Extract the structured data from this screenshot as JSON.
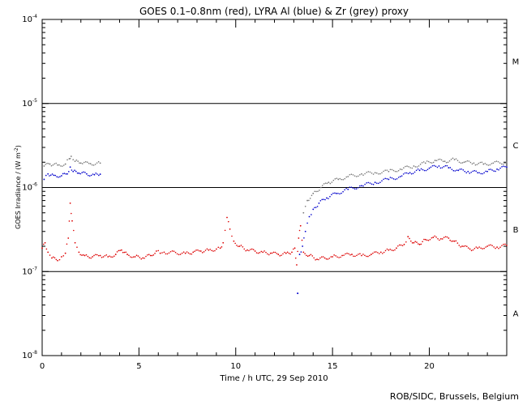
{
  "chart_data": {
    "type": "scatter",
    "title": "GOES 0.1–0.8nm (red), LYRA Al (blue) & Zr (grey) proxy",
    "xlabel": "Time / h UTC, 29 Sep 2010",
    "ylabel": "GOES Irradiance / (W m",
    "ylabel_exp": "-2",
    "ylabel_close": ")",
    "xlim": [
      0,
      24
    ],
    "ylim": [
      1e-08,
      0.0001
    ],
    "yscale": "log",
    "x_ticks": [
      {
        "value": 0,
        "label": "0"
      },
      {
        "value": 5,
        "label": "5"
      },
      {
        "value": 10,
        "label": "10"
      },
      {
        "value": 15,
        "label": "15"
      },
      {
        "value": 20,
        "label": "20"
      }
    ],
    "y_ticks": [
      {
        "value": 1e-08,
        "label": "10",
        "exp": "-8"
      },
      {
        "value": 1e-07,
        "label": "10",
        "exp": "-7"
      },
      {
        "value": 1e-06,
        "label": "10",
        "exp": "-6"
      },
      {
        "value": 1e-05,
        "label": "10",
        "exp": "-5"
      },
      {
        "value": 0.0001,
        "label": "10",
        "exp": "-4"
      }
    ],
    "class_lines": [
      1e-07,
      1e-06,
      1e-05
    ],
    "flare_classes": [
      {
        "label": "A",
        "value": 3.2e-08
      },
      {
        "label": "B",
        "value": 3.2e-07
      },
      {
        "label": "C",
        "value": 3.2e-06
      },
      {
        "label": "M",
        "value": 3.2e-05
      }
    ],
    "series": [
      {
        "color": "#dd0000",
        "points": [
          [
            0.0,
            1.9e-07
          ],
          [
            0.15,
            2.2e-07
          ],
          [
            0.3,
            1.7e-07
          ],
          [
            0.5,
            1.45e-07
          ],
          [
            0.8,
            1.35e-07
          ],
          [
            1.0,
            1.5e-07
          ],
          [
            1.2,
            1.65e-07
          ],
          [
            1.35,
            2.5e-07
          ],
          [
            1.45,
            6.5e-07
          ],
          [
            1.55,
            4e-07
          ],
          [
            1.7,
            2.2e-07
          ],
          [
            1.9,
            1.7e-07
          ],
          [
            2.2,
            1.55e-07
          ],
          [
            2.6,
            1.5e-07
          ],
          [
            3.0,
            1.55e-07
          ],
          [
            3.4,
            1.5e-07
          ],
          [
            3.8,
            1.6e-07
          ],
          [
            4.1,
            1.8e-07
          ],
          [
            4.4,
            1.6e-07
          ],
          [
            4.8,
            1.5e-07
          ],
          [
            5.2,
            1.45e-07
          ],
          [
            5.6,
            1.55e-07
          ],
          [
            5.9,
            1.75e-07
          ],
          [
            6.1,
            1.65e-07
          ],
          [
            6.3,
            1.7e-07
          ],
          [
            7.4,
            1.65e-07
          ],
          [
            7.8,
            1.7e-07
          ],
          [
            8.2,
            1.75e-07
          ],
          [
            8.6,
            1.8e-07
          ],
          [
            9.0,
            1.85e-07
          ],
          [
            9.2,
            1.9e-07
          ],
          [
            9.35,
            2.2e-07
          ],
          [
            9.55,
            4.4e-07
          ],
          [
            9.7,
            3.2e-07
          ],
          [
            9.9,
            2.3e-07
          ],
          [
            10.2,
            2e-07
          ],
          [
            10.6,
            1.8e-07
          ],
          [
            11.0,
            1.75e-07
          ],
          [
            11.4,
            1.7e-07
          ],
          [
            11.8,
            1.65e-07
          ],
          [
            12.2,
            1.6e-07
          ],
          [
            12.6,
            1.65e-07
          ],
          [
            12.9,
            1.7e-07
          ],
          [
            13.05,
            1.9e-07
          ],
          [
            13.15,
            1.2e-07
          ],
          [
            13.25,
            2.5e-07
          ],
          [
            13.35,
            3.5e-07
          ],
          [
            13.5,
            1.7e-07
          ],
          [
            13.8,
            1.55e-07
          ],
          [
            14.2,
            1.4e-07
          ],
          [
            14.6,
            1.45e-07
          ],
          [
            15.0,
            1.5e-07
          ],
          [
            15.5,
            1.55e-07
          ],
          [
            16.0,
            1.6e-07
          ],
          [
            16.5,
            1.55e-07
          ],
          [
            17.0,
            1.6e-07
          ],
          [
            17.5,
            1.7e-07
          ],
          [
            17.9,
            1.8e-07
          ],
          [
            18.3,
            1.9e-07
          ],
          [
            18.7,
            2.1e-07
          ],
          [
            18.9,
            2.6e-07
          ],
          [
            19.2,
            2.2e-07
          ],
          [
            19.5,
            2.1e-07
          ],
          [
            19.8,
            2.4e-07
          ],
          [
            20.2,
            2.55e-07
          ],
          [
            20.6,
            2.45e-07
          ],
          [
            21.0,
            2.5e-07
          ],
          [
            21.3,
            2.3e-07
          ],
          [
            21.7,
            2e-07
          ],
          [
            22.1,
            1.85e-07
          ],
          [
            22.5,
            1.9e-07
          ],
          [
            23.0,
            2e-07
          ],
          [
            23.5,
            1.95e-07
          ],
          [
            24.0,
            2.05e-07
          ]
        ]
      },
      {
        "color": "#0000cc",
        "points": [
          [
            0.1,
            1.25e-06
          ],
          [
            0.3,
            1.45e-06
          ],
          [
            0.6,
            1.4e-06
          ],
          [
            1.0,
            1.38e-06
          ],
          [
            1.3,
            1.45e-06
          ],
          [
            1.45,
            1.75e-06
          ],
          [
            1.6,
            1.55e-06
          ],
          [
            1.9,
            1.48e-06
          ],
          [
            2.3,
            1.45e-06
          ],
          [
            2.7,
            1.42e-06
          ],
          [
            3.0,
            1.44e-06
          ],
          [
            13.3,
            1.6e-07
          ],
          [
            13.45,
            2e-07
          ],
          [
            13.6,
            3e-07
          ],
          [
            13.8,
            4.5e-07
          ],
          [
            14.0,
            5.5e-07
          ],
          [
            14.3,
            6.5e-07
          ],
          [
            14.7,
            7.5e-07
          ],
          [
            15.2,
            8.5e-07
          ],
          [
            15.8,
            9.5e-07
          ],
          [
            16.5,
            1.05e-06
          ],
          [
            17.2,
            1.15e-06
          ],
          [
            17.9,
            1.25e-06
          ],
          [
            18.5,
            1.35e-06
          ],
          [
            19.0,
            1.5e-06
          ],
          [
            19.5,
            1.6e-06
          ],
          [
            20.0,
            1.7e-06
          ],
          [
            20.5,
            1.8e-06
          ],
          [
            21.0,
            1.72e-06
          ],
          [
            21.5,
            1.6e-06
          ],
          [
            22.0,
            1.55e-06
          ],
          [
            22.5,
            1.5e-06
          ],
          [
            23.0,
            1.55e-06
          ],
          [
            23.5,
            1.65e-06
          ],
          [
            24.0,
            1.75e-06
          ]
        ]
      },
      {
        "color": "#777777",
        "points": [
          [
            0.1,
            1.8e-06
          ],
          [
            0.4,
            1.9e-06
          ],
          [
            0.8,
            1.85e-06
          ],
          [
            1.2,
            1.9e-06
          ],
          [
            1.4,
            2.2e-06
          ],
          [
            1.5,
            2.35e-06
          ],
          [
            1.7,
            2.05e-06
          ],
          [
            2.0,
            1.95e-06
          ],
          [
            2.5,
            1.92e-06
          ],
          [
            3.0,
            1.95e-06
          ],
          [
            13.5,
            5e-07
          ],
          [
            13.7,
            7e-07
          ],
          [
            14.0,
            8.5e-07
          ],
          [
            14.4,
            1e-06
          ],
          [
            14.8,
            1.15e-06
          ],
          [
            15.3,
            1.25e-06
          ],
          [
            15.8,
            1.35e-06
          ],
          [
            16.5,
            1.45e-06
          ],
          [
            17.2,
            1.5e-06
          ],
          [
            17.9,
            1.55e-06
          ],
          [
            18.5,
            1.65e-06
          ],
          [
            19.2,
            1.8e-06
          ],
          [
            19.8,
            1.95e-06
          ],
          [
            20.3,
            2.1e-06
          ],
          [
            20.8,
            2.05e-06
          ],
          [
            21.3,
            2.15e-06
          ],
          [
            21.8,
            2e-06
          ],
          [
            22.3,
            1.95e-06
          ],
          [
            22.8,
            1.9e-06
          ],
          [
            23.3,
            1.95e-06
          ],
          [
            24.0,
            2e-06
          ]
        ]
      }
    ]
  },
  "credit": "ROB/SIDC, Brussels, Belgium"
}
